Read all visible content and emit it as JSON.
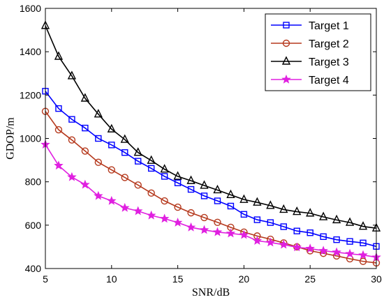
{
  "chart_data": {
    "type": "line",
    "title": "",
    "xlabel": "SNR/dB",
    "ylabel": "GDOP/m",
    "xlim": [
      5,
      30
    ],
    "ylim": [
      400,
      1600
    ],
    "xticks": [
      5,
      10,
      15,
      20,
      25,
      30
    ],
    "yticks": [
      400,
      600,
      800,
      1000,
      1200,
      1400,
      1600
    ],
    "grid": false,
    "legend_position": "top-right",
    "x": [
      5,
      6,
      7,
      8,
      9,
      10,
      11,
      12,
      13,
      14,
      15,
      16,
      17,
      18,
      19,
      20,
      21,
      22,
      23,
      24,
      25,
      26,
      27,
      28,
      29,
      30
    ],
    "series": [
      {
        "name": "Target 1",
        "color": "#0000ff",
        "marker": "square",
        "values": [
          1218,
          1138,
          1088,
          1048,
          1000,
          970,
          935,
          895,
          862,
          825,
          795,
          765,
          735,
          712,
          688,
          650,
          625,
          612,
          593,
          573,
          565,
          547,
          533,
          525,
          518,
          502
        ]
      },
      {
        "name": "Target 2",
        "color": "#b5391d",
        "marker": "circle",
        "values": [
          1125,
          1040,
          993,
          942,
          890,
          855,
          820,
          785,
          748,
          712,
          683,
          657,
          635,
          613,
          590,
          568,
          550,
          535,
          518,
          500,
          482,
          470,
          458,
          445,
          433,
          426
        ]
      },
      {
        "name": "Target 3",
        "color": "#000000",
        "marker": "triangle",
        "values": [
          1520,
          1378,
          1288,
          1185,
          1112,
          1043,
          995,
          935,
          898,
          858,
          825,
          805,
          783,
          762,
          740,
          718,
          705,
          690,
          672,
          662,
          655,
          638,
          624,
          612,
          594,
          586
        ]
      },
      {
        "name": "Target 4",
        "color": "#e020e0",
        "marker": "star",
        "values": [
          972,
          875,
          822,
          787,
          735,
          712,
          680,
          665,
          645,
          630,
          612,
          590,
          578,
          568,
          562,
          555,
          528,
          520,
          510,
          498,
          492,
          482,
          475,
          468,
          462,
          452
        ]
      }
    ]
  }
}
